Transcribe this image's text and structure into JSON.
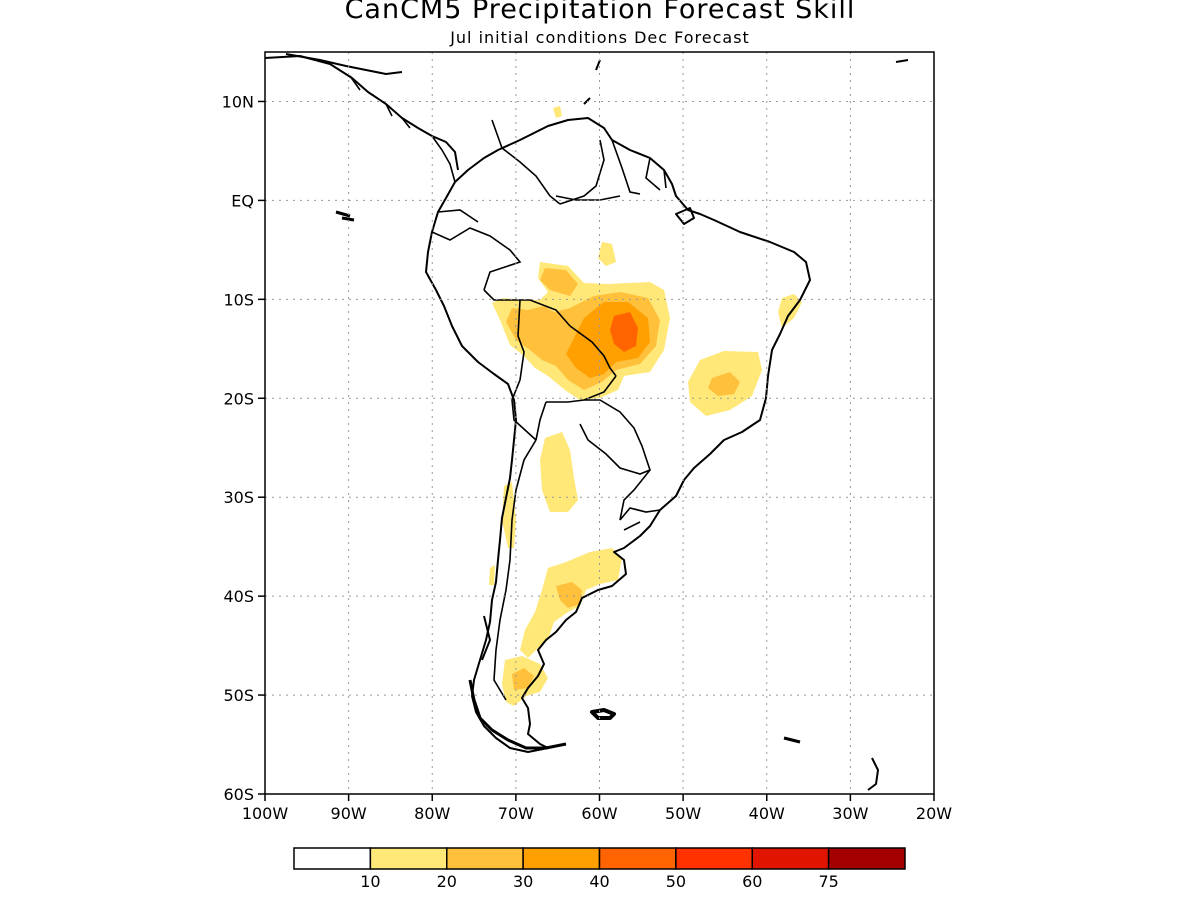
{
  "title": "CanCM5 Precipitation Forecast Skill",
  "subtitle": "Jul initial conditions   Dec Forecast",
  "map": {
    "region": "South America",
    "lon_range": [
      -100,
      -20
    ],
    "lat_range": [
      -60,
      15
    ],
    "lat_ticks": [
      {
        "value": 10,
        "label": "10N"
      },
      {
        "value": 0,
        "label": "EQ"
      },
      {
        "value": -10,
        "label": "10S"
      },
      {
        "value": -20,
        "label": "20S"
      },
      {
        "value": -30,
        "label": "30S"
      },
      {
        "value": -40,
        "label": "40S"
      },
      {
        "value": -50,
        "label": "50S"
      },
      {
        "value": -60,
        "label": "60S"
      }
    ],
    "lon_ticks": [
      {
        "value": -100,
        "label": "100W"
      },
      {
        "value": -90,
        "label": "90W"
      },
      {
        "value": -80,
        "label": "80W"
      },
      {
        "value": -70,
        "label": "70W"
      },
      {
        "value": -60,
        "label": "60W"
      },
      {
        "value": -50,
        "label": "50W"
      },
      {
        "value": -40,
        "label": "40W"
      },
      {
        "value": -30,
        "label": "30W"
      },
      {
        "value": -20,
        "label": "20W"
      }
    ],
    "grid": "dotted",
    "skill_regions": [
      {
        "lon": -57,
        "lat": -12.5,
        "level": 40
      },
      {
        "lon": -58,
        "lat": -12,
        "level": 30
      },
      {
        "lon": -63,
        "lat": -15,
        "level": 20
      },
      {
        "lon": -68,
        "lat": -13,
        "level": 20
      },
      {
        "lon": -45,
        "lat": -18,
        "level": 20
      },
      {
        "lon": -65,
        "lat": -38,
        "level": 20
      },
      {
        "lon": -69,
        "lat": -48,
        "level": 20
      }
    ]
  },
  "colorbar": {
    "labels": [
      "10",
      "20",
      "30",
      "40",
      "50",
      "60",
      "75"
    ],
    "colors": [
      "#ffffff",
      "#ffe878",
      "#ffc03c",
      "#ffa000",
      "#ff6400",
      "#ff3200",
      "#e11400",
      "#a50000"
    ]
  }
}
